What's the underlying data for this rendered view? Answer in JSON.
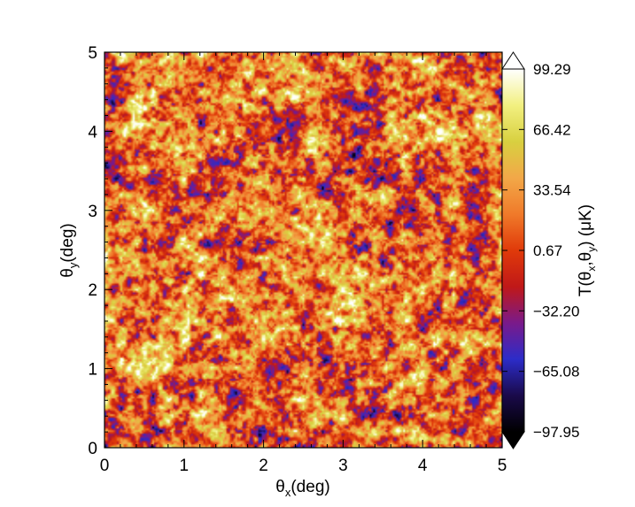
{
  "chart_data": {
    "type": "heatmap",
    "title": "",
    "x_axis": {
      "label_main": "θ",
      "label_sub": "x",
      "label_unit": "(deg)",
      "range": [
        0,
        5
      ],
      "ticks": [
        "0",
        "1",
        "2",
        "3",
        "4",
        "5"
      ]
    },
    "y_axis": {
      "label_main": "θ",
      "label_sub": "y",
      "label_unit": "(deg)",
      "range": [
        0,
        5
      ],
      "ticks": [
        "0",
        "1",
        "2",
        "3",
        "4",
        "5"
      ]
    },
    "colorbar": {
      "label_parts": [
        "T(θ",
        "x",
        ",θ",
        "y",
        ")  (μK)"
      ],
      "range": [
        -97.95,
        99.29
      ],
      "tick_values": [
        99.29,
        66.42,
        33.54,
        0.67,
        -32.2,
        -65.08,
        -97.95
      ],
      "tick_labels": [
        "99.29",
        "66.42",
        "33.54",
        "0.67",
        "−32.20",
        "−65.08",
        "−97.95"
      ],
      "colormap": [
        "#000000",
        "#1a0a4a",
        "#2c2cc8",
        "#7a1a8a",
        "#c01818",
        "#e03a0a",
        "#f07a2a",
        "#f2a848",
        "#d8d040",
        "#f2f080",
        "#ffffff"
      ],
      "extend": "both"
    },
    "field_description_values": {
      "grid": "random Gaussian-like temperature anisotropy field"
    }
  }
}
